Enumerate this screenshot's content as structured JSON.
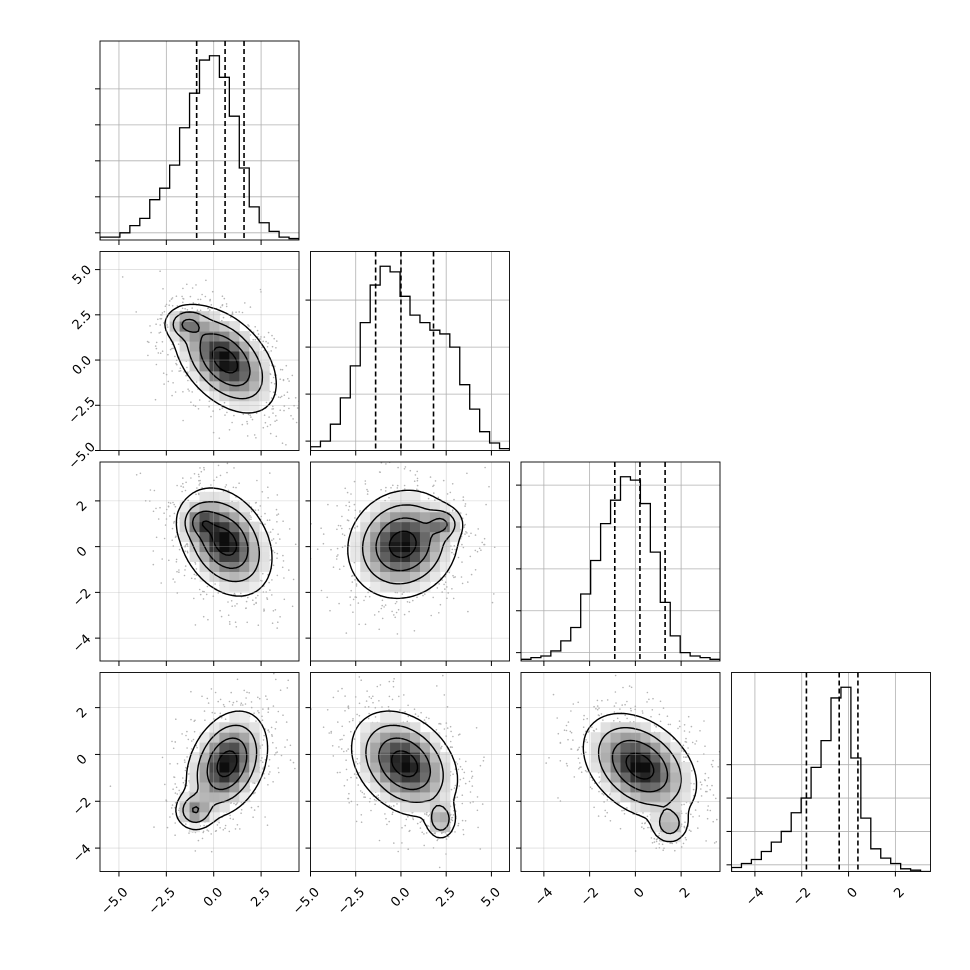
{
  "chart_data": {
    "type": "corner",
    "title": "",
    "parameters": [
      {
        "index": 0,
        "range": [
          -6.0,
          4.5
        ],
        "ticks": [
          -5.0,
          -2.5,
          0.0,
          2.5
        ],
        "tick_labels": [
          "−5.0",
          "−2.5",
          "0.0",
          "2.5"
        ],
        "quantiles": [
          -0.9,
          0.6,
          1.6
        ]
      },
      {
        "index": 1,
        "range": [
          -5.0,
          6.0
        ],
        "ticks": [
          -5.0,
          -2.5,
          0.0,
          2.5,
          5.0
        ],
        "tick_labels": [
          "−5.0",
          "−2.5",
          "0.0",
          "2.5",
          "5.0"
        ],
        "quantiles": [
          -1.4,
          0.0,
          1.8
        ]
      },
      {
        "index": 2,
        "range": [
          -5.0,
          3.7
        ],
        "ticks": [
          -4,
          -2,
          0,
          2
        ],
        "tick_labels": [
          "−4",
          "−2",
          "0",
          "2"
        ],
        "quantiles": [
          -0.9,
          0.2,
          1.3
        ]
      },
      {
        "index": 3,
        "range": [
          -5.0,
          3.5
        ],
        "ticks": [
          -4,
          -2,
          0,
          2
        ],
        "tick_labels": [
          "−4",
          "−2",
          "0",
          "2"
        ],
        "quantiles": [
          -1.8,
          -0.4,
          0.4
        ]
      }
    ],
    "histograms": [
      [
        0.2,
        0.2,
        0.5,
        1.0,
        1.5,
        2.8,
        3.6,
        5.2,
        7.8,
        10.2,
        12.5,
        12.8,
        11.3,
        8.6,
        5.0,
        2.3,
        1.2,
        0.6,
        0.2,
        0.1
      ],
      [
        0.2,
        0.5,
        1.4,
        2.8,
        4.5,
        6.8,
        8.8,
        9.8,
        9.5,
        8.2,
        7.2,
        6.8,
        6.4,
        6.2,
        5.5,
        3.5,
        2.2,
        1.0,
        0.4,
        0.1
      ],
      [
        0.1,
        0.2,
        0.3,
        0.6,
        1.2,
        2.0,
        4.0,
        6.0,
        8.2,
        9.6,
        11.0,
        10.8,
        9.4,
        6.5,
        3.5,
        1.5,
        0.5,
        0.3,
        0.2,
        0.1
      ],
      [
        0.3,
        0.6,
        0.9,
        1.5,
        2.2,
        3.0,
        4.4,
        5.5,
        7.8,
        9.8,
        13.0,
        13.8,
        8.5,
        4.0,
        1.7,
        1.0,
        0.6,
        0.2,
        0.1,
        0.0
      ]
    ],
    "hist_axis_ticks": [
      [
        0.5,
        3.0,
        5.5,
        8.0,
        10.5
      ],
      [
        0.5,
        3.0,
        5.5,
        8.0
      ],
      [
        0.5,
        3.0,
        5.5,
        8.0,
        10.5
      ],
      [
        0.5,
        3.0,
        5.5,
        8.0
      ]
    ],
    "pairs": [
      {
        "row": 1,
        "col": 0,
        "mean": [
          0.6,
          0.0
        ],
        "std": [
          1.2,
          1.3
        ],
        "corr": -0.45,
        "lobe": {
          "offset": [
            -2.0,
            2.0
          ],
          "std": [
            0.55,
            0.45
          ],
          "weight": 0.15
        }
      },
      {
        "row": 2,
        "col": 0,
        "mean": [
          0.6,
          0.2
        ],
        "std": [
          1.1,
          1.05
        ],
        "corr": -0.3,
        "lobe": {
          "offset": [
            -1.3,
            0.9
          ],
          "std": [
            0.5,
            0.4
          ],
          "weight": 0.12
        }
      },
      {
        "row": 2,
        "col": 1,
        "mean": [
          0.1,
          0.1
        ],
        "std": [
          1.35,
          1.05
        ],
        "corr": 0.1,
        "lobe": {
          "offset": [
            2.2,
            0.9
          ],
          "std": [
            0.5,
            0.35
          ],
          "weight": 0.14
        }
      },
      {
        "row": 3,
        "col": 0,
        "mean": [
          0.7,
          -0.4
        ],
        "std": [
          0.95,
          1.0
        ],
        "corr": 0.3,
        "lobe": {
          "offset": [
            -1.7,
            -2.0
          ],
          "std": [
            0.5,
            0.4
          ],
          "weight": 0.16
        }
      },
      {
        "row": 3,
        "col": 1,
        "mean": [
          0.2,
          -0.4
        ],
        "std": [
          1.3,
          1.0
        ],
        "corr": -0.3,
        "lobe": {
          "offset": [
            2.0,
            -2.4
          ],
          "std": [
            0.4,
            0.4
          ],
          "weight": 0.14
        }
      },
      {
        "row": 3,
        "col": 2,
        "mean": [
          0.2,
          -0.5
        ],
        "std": [
          1.1,
          1.0
        ],
        "corr": -0.35,
        "lobe": {
          "offset": [
            1.3,
            -2.5
          ],
          "std": [
            0.4,
            0.4
          ],
          "weight": 0.12
        }
      }
    ],
    "grid": true,
    "colors": {
      "line": "#000000",
      "hist_fill": "#ffffff",
      "points": "#b4b4b4",
      "density_ramp": [
        "#ffffff",
        "#000000"
      ],
      "grid": "#b0b0b0"
    }
  }
}
